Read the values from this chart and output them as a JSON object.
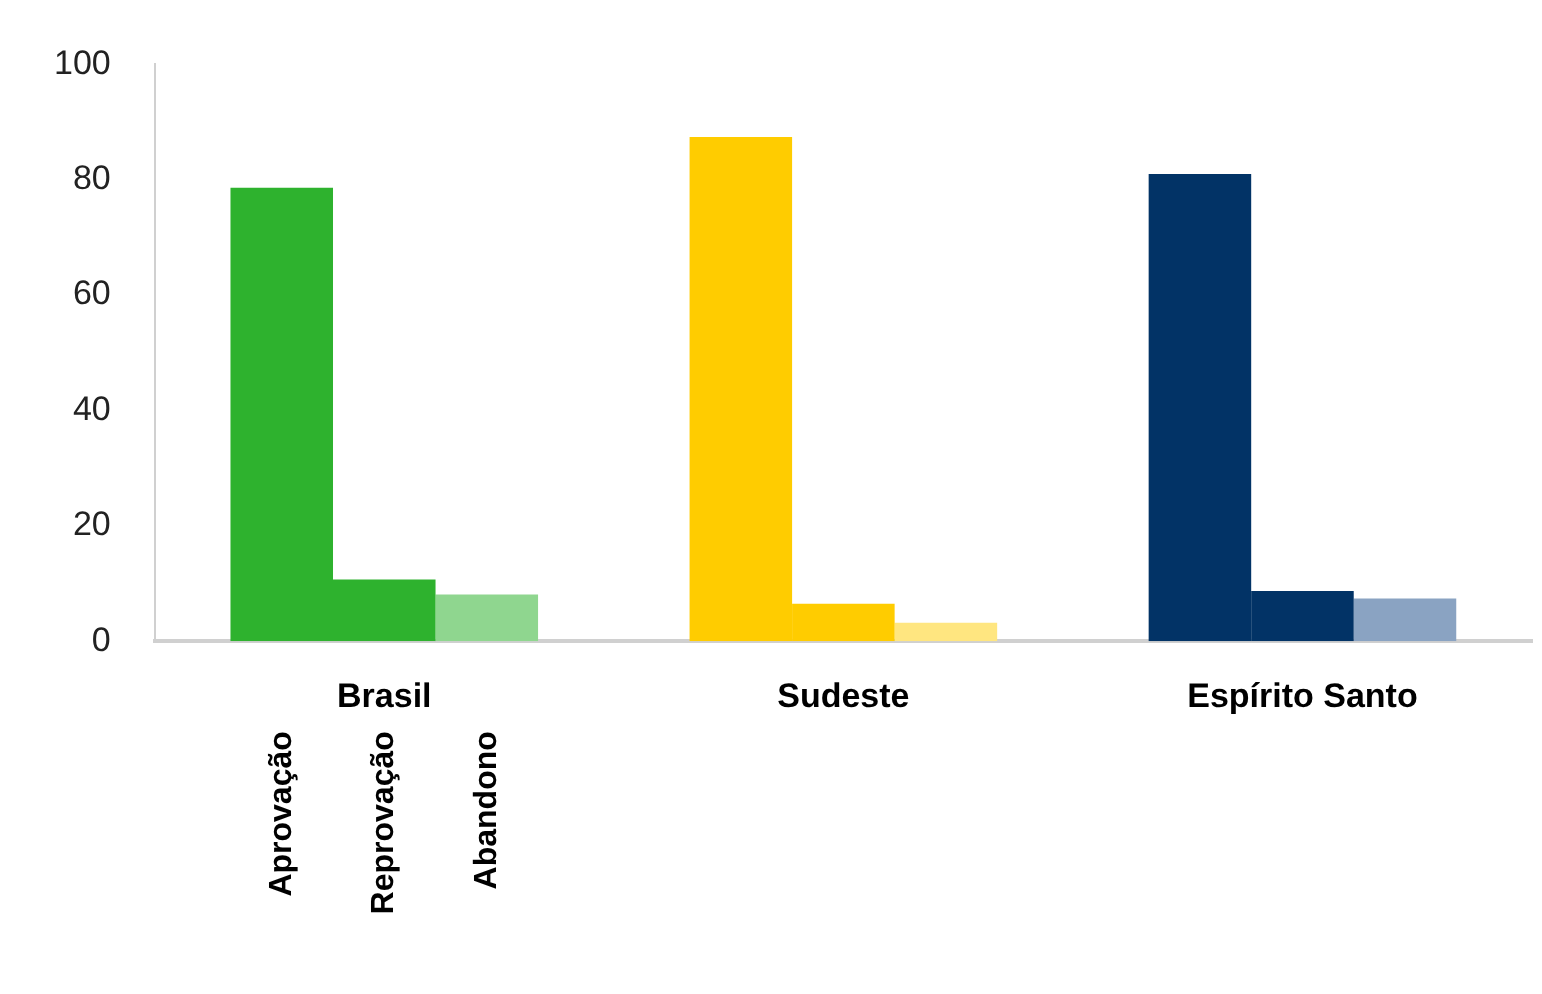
{
  "chart_data": {
    "type": "bar",
    "categories": [
      "Brasil",
      "Sudeste",
      "Espírito Santo"
    ],
    "series": [
      {
        "name": "Aprovação",
        "colors": [
          "#2eb22e",
          "#ffcc00",
          "#023366"
        ],
        "values": [
          78.6,
          87.4,
          81
        ]
      },
      {
        "name": "Reprovação",
        "colors": [
          "#2eb22e",
          "#ffcc00",
          "#023366"
        ],
        "values": [
          10.7,
          6.5,
          8.7
        ]
      },
      {
        "name": "Abandono",
        "colors": [
          "#8fd68f",
          "#ffe680",
          "#8aa3c2"
        ],
        "values": [
          8.1,
          3.2,
          7.4
        ]
      }
    ],
    "ylim": [
      0,
      100
    ],
    "yticks": [
      0,
      20,
      40,
      60,
      80,
      100
    ],
    "grid": false,
    "legend": false
  }
}
